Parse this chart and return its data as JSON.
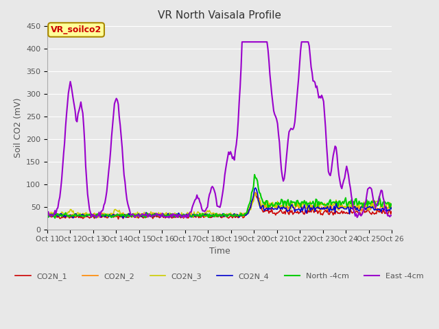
{
  "title": "VR North Vaisala Profile",
  "xlabel": "Time",
  "ylabel": "Soil CO2 (mV)",
  "ylim": [
    0,
    450
  ],
  "xlim": [
    0,
    360
  ],
  "background_color": "#e8e8e8",
  "plot_bg_color": "#e8e8e8",
  "annotation_text": "VR_soilco2",
  "annotation_bg": "#ffff99",
  "annotation_border": "#aa8800",
  "annotation_text_color": "#cc0000",
  "xtick_labels": [
    "Oct 11",
    "Oct 12",
    "Oct 13",
    "Oct 14",
    "Oct 15",
    "Oct 16",
    "Oct 17",
    "Oct 18",
    "Oct 19",
    "Oct 20",
    "Oct 21",
    "Oct 22",
    "Oct 23",
    "Oct 24",
    "Oct 25",
    "Oct 26"
  ],
  "legend_labels": [
    "CO2N_1",
    "CO2N_2",
    "CO2N_3",
    "CO2N_4",
    "North -4cm",
    "East -4cm"
  ],
  "line_colors": [
    "#cc0000",
    "#ff8800",
    "#cccc00",
    "#0000cc",
    "#00cc00",
    "#9900cc"
  ],
  "line_widths": [
    1.2,
    1.2,
    1.2,
    1.2,
    1.5,
    1.5
  ],
  "grid_color": "#ffffff",
  "tick_label_color": "#555555",
  "title_color": "#333333"
}
